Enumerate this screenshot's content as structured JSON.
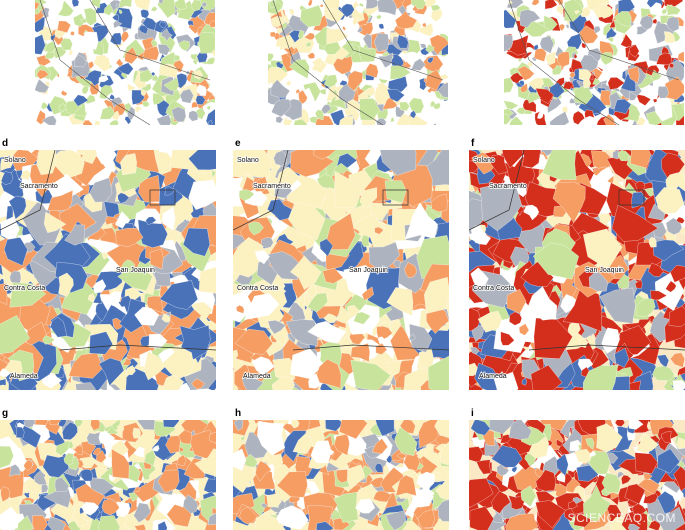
{
  "panels": [
    {
      "letter": "d",
      "labels": [
        "Solano",
        "Sacramento",
        "San Joaquin",
        "Contra Costa",
        "Alameda"
      ]
    },
    {
      "letter": "e",
      "labels": [
        "Solano",
        "Sacramento",
        "San Joaquin",
        "Contra Costa",
        "Alameda"
      ]
    },
    {
      "letter": "f",
      "labels": [
        "Solano",
        "Sacramento",
        "San Joaquin",
        "Contra Costa",
        "Alameda"
      ]
    },
    {
      "letter": "g"
    },
    {
      "letter": "h"
    },
    {
      "letter": "i"
    }
  ],
  "watermark": "SCIENCEAQ.COM"
}
